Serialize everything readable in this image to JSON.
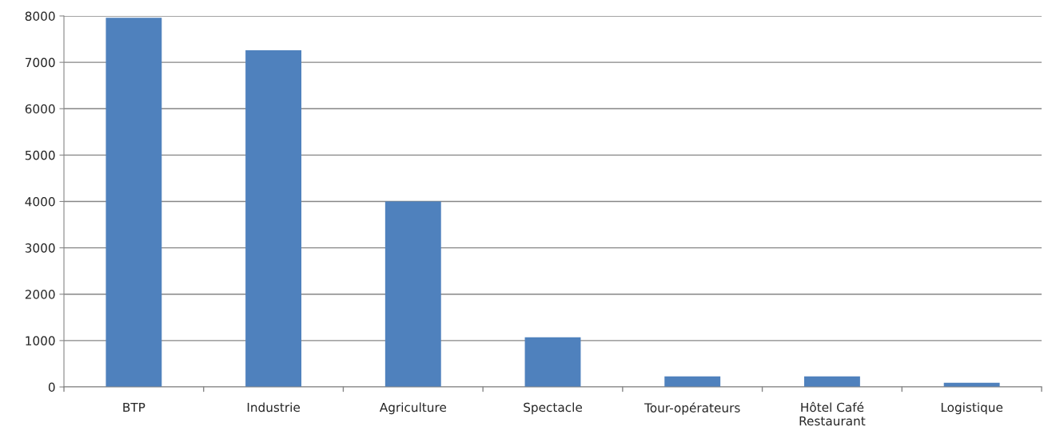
{
  "chart_data": {
    "type": "bar",
    "categories": [
      "BTP",
      "Industrie",
      "Agriculture",
      "Spectacle",
      "Tour-opérateurs",
      "Hôtel Café\nRestaurant",
      "Logistique"
    ],
    "values": [
      7960,
      7260,
      4000,
      1070,
      230,
      230,
      90
    ],
    "color": "#4f81bd",
    "ylim": [
      0,
      8000
    ],
    "yticks": [
      0,
      1000,
      2000,
      3000,
      4000,
      5000,
      6000,
      7000,
      8000
    ],
    "grid": "y",
    "legend": false
  }
}
